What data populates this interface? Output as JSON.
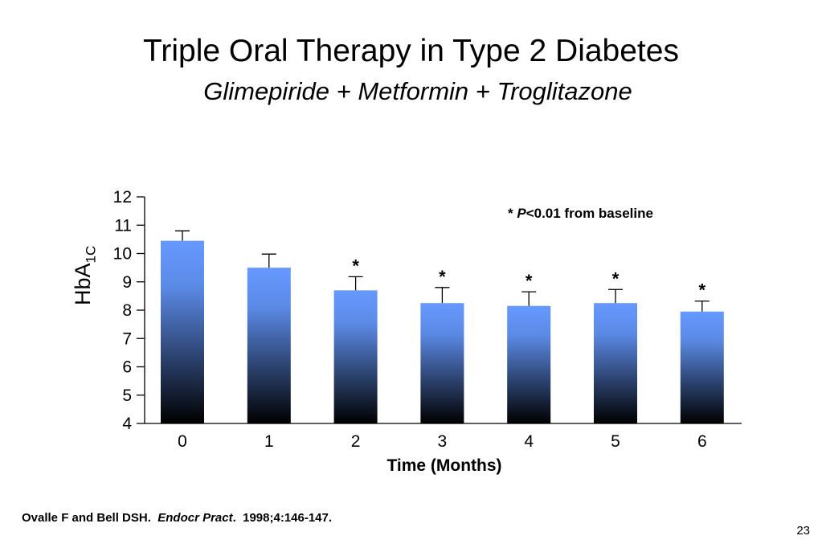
{
  "slide": {
    "title": "Triple Oral Therapy in Type 2 Diabetes",
    "subtitle": "Glimepiride + Metformin + Troglitazone",
    "citation_authors": "Ovalle F and Bell DSH.",
    "citation_journal": "Endocr Pract",
    "citation_ref": ".  1998;4:146-147.",
    "page_number": "23"
  },
  "chart_data": {
    "type": "bar",
    "categories": [
      "0",
      "1",
      "2",
      "3",
      "4",
      "5",
      "6"
    ],
    "values": [
      10.45,
      9.5,
      8.7,
      8.25,
      8.15,
      8.25,
      7.95
    ],
    "error_upper": [
      10.8,
      9.98,
      9.18,
      8.8,
      8.65,
      8.73,
      8.32
    ],
    "significant": [
      false,
      false,
      true,
      true,
      true,
      true,
      true
    ],
    "significance_marker": "*",
    "annotation_prefix": "* ",
    "annotation_p": "P",
    "annotation_rest": "<0.01  from baseline",
    "xlabel": "Time (Months)",
    "ylabel_main": "HbA",
    "ylabel_sub": "1C",
    "ylim": [
      4,
      12
    ],
    "yticks": [
      "4",
      "5",
      "6",
      "7",
      "8",
      "9",
      "10",
      "11",
      "12"
    ],
    "colors": {
      "bar_top": "#6699ff",
      "bar_bottom": "#000000",
      "axis": "#000000"
    },
    "grid": false
  }
}
